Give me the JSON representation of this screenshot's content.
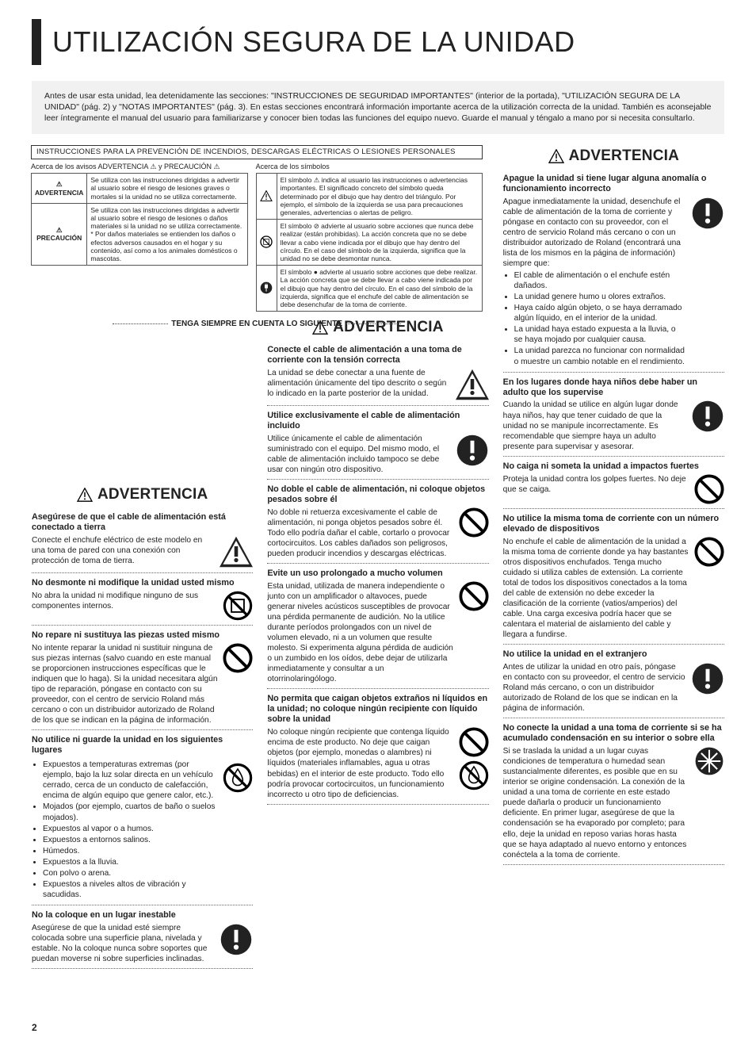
{
  "page_number": "2",
  "title": "UTILIZACIÓN SEGURA DE LA UNIDAD",
  "intro": "Antes de usar esta unidad, lea detenidamente las secciones: \"INSTRUCCIONES DE SEGURIDAD IMPORTANTES\" (interior de la portada), \"UTILIZACIÓN SEGURA DE LA UNIDAD\" (pág. 2) y \"NOTAS IMPORTANTES\" (pág. 3). En estas secciones encontrará información importante acerca de la utilización correcta de la unidad. También es aconsejable leer íntegramente el manual del usuario para familiarizarse y conocer bien todas las funciones del equipo nuevo. Guarde el manual y téngalo a mano por si necesita consultarlo.",
  "instr_bar": "INSTRUCCIONES PARA LA PREVENCIÓN DE INCENDIOS, DESCARGAS ELÉCTRICAS O LESIONES PERSONALES",
  "tbl_left_title": "Acerca de los avisos ADVERTENCIA ⚠ y PRECAUCIÓN ⚠",
  "tbl_left": {
    "r1_label": "⚠ ADVERTENCIA",
    "r1_text": "Se utiliza con las instrucciones dirigidas a advertir al usuario sobre el riesgo de lesiones graves o mortales si la unidad no se utiliza correctamente.",
    "r2_label": "⚠ PRECAUCIÓN",
    "r2_text": "Se utiliza con las instrucciones dirigidas a advertir al usuario sobre el riesgo de lesiones o daños materiales si la unidad no se utiliza correctamente.\n* Por daños materiales se entienden los daños o efectos adversos causados en el hogar y su contenido, así como a los animales domésticos o mascotas."
  },
  "tbl_right_title": "Acerca de los símbolos",
  "tbl_right": {
    "r1": "El símbolo ⚠ indica al usuario las instrucciones o advertencias importantes. El significado concreto del símbolo queda determinado por el dibujo que hay dentro del triángulo. Por ejemplo, el símbolo de la izquierda se usa para precauciones generales, advertencias o alertas de peligro.",
    "r2": "El símbolo ⊘ advierte al usuario sobre acciones que nunca debe realizar (están prohibidas). La acción concreta que no se debe llevar a cabo viene indicada por el dibujo que hay dentro del círculo. En el caso del símbolo de la izquierda, significa que la unidad no se debe desmontar nunca.",
    "r3": "El símbolo ● advierte al usuario sobre acciones que debe realizar. La acción concreta que se debe llevar a cabo viene indicada por el dibujo que hay dentro del círculo. En el caso del símbolo de la izquierda, significa que el enchufe del cable de alimentación se debe desenchufar de la toma de corriente."
  },
  "divider": "TENGA SIEMPRE EN CUENTA LO SIGUIENTE",
  "warn_label": "ADVERTENCIA",
  "col1": {
    "s1_t": "Asegúrese de que el cable de alimentación está conectado a tierra",
    "s1_b": "Conecte el enchufe eléctrico de este modelo en una toma de pared con una conexión con protección de toma de tierra.",
    "s2_t": "No desmonte ni modifique la unidad usted mismo",
    "s2_b": "No abra la unidad ni modifique ninguno de sus componentes internos.",
    "s3_t": "No repare ni sustituya las piezas usted mismo",
    "s3_b": "No intente reparar la unidad ni sustituir ninguna de sus piezas internas (salvo cuando en este manual se proporcionen instrucciones específicas que le indiquen que lo haga). Si la unidad necesitara algún tipo de reparación, póngase en contacto con su proveedor, con el centro de servicio Roland más cercano o con un distribuidor autorizado de Roland de los que se indican en la página de información.",
    "s4_t": "No utilice ni guarde la unidad en los siguientes lugares",
    "s4_items": [
      "Expuestos a temperaturas extremas (por ejemplo, bajo la luz solar directa en un vehículo cerrado, cerca de un conducto de calefacción, encima de algún equipo que genere calor, etc.).",
      "Mojados (por ejemplo, cuartos de baño o suelos mojados).",
      "Expuestos al vapor o a humos.",
      "Expuestos a entornos salinos.",
      "Húmedos.",
      "Expuestos a la lluvia.",
      "Con polvo o arena.",
      "Expuestos a niveles altos de vibración y sacudidas."
    ],
    "s5_t": "No la coloque en un lugar inestable",
    "s5_b": "Asegúrese de que la unidad esté siempre colocada sobre una superficie plana, nivelada y estable. No la coloque nunca sobre soportes que puedan moverse ni sobre superficies inclinadas."
  },
  "col2": {
    "s1_t": "Conecte el cable de alimentación a una toma de corriente con la tensión correcta",
    "s1_b": "La unidad se debe conectar a una fuente de alimentación únicamente del tipo descrito o según lo indicado en la parte posterior de la unidad.",
    "s2_t": "Utilice exclusivamente el cable de alimentación incluido",
    "s2_b": "Utilice únicamente el cable de alimentación suministrado con el equipo. Del mismo modo, el cable de alimentación incluido tampoco se debe usar con ningún otro dispositivo.",
    "s3_t": "No doble el cable de alimentación, ni coloque objetos pesados sobre él",
    "s3_b": "No doble ni retuerza excesivamente el cable de alimentación, ni ponga objetos pesados sobre él. Todo ello podría dañar el cable, cortarlo o provocar cortocircuitos. Los cables dañados son peligrosos, pueden producir incendios y descargas eléctricas.",
    "s4_t": "Evite un uso prolongado a mucho volumen",
    "s4_b": "Esta unidad, utilizada de manera independiente o junto con un amplificador o altavoces, puede generar niveles acústicos susceptibles de provocar una pérdida permanente de audición. No la utilice durante períodos prolongados con un nivel de volumen elevado, ni a un volumen que resulte molesto. Si experimenta alguna pérdida de audición o un zumbido en los oídos, debe dejar de utilizarla inmediatamente y consultar a un otorrinolaringólogo.",
    "s5_t": "No permita que caigan objetos extraños ni líquidos en la unidad; no coloque ningún recipiente con líquido sobre la unidad",
    "s5_b": "No coloque ningún recipiente que contenga líquido encima de este producto. No deje que caigan objetos (por ejemplo, monedas o alambres) ni líquidos (materiales inflamables, agua u otras bebidas) en el interior de este producto. Todo ello podría provocar cortocircuitos, un funcionamiento incorrecto u otro tipo de deficiencias."
  },
  "col3": {
    "s1_t": "Apague la unidad si tiene lugar alguna anomalía o funcionamiento incorrecto",
    "s1_b": "Apague inmediatamente la unidad, desenchufe el cable de alimentación de la toma de corriente y póngase en contacto con su proveedor, con el centro de servicio Roland más cercano o con un distribuidor autorizado de Roland (encontrará una lista de los mismos en la página de información) siempre que:",
    "s1_items": [
      "El cable de alimentación o el enchufe estén dañados.",
      "La unidad genere humo u olores extraños.",
      "Haya caído algún objeto, o se haya derramado algún líquido, en el interior de la unidad.",
      "La unidad haya estado expuesta a la lluvia, o se haya mojado por cualquier causa.",
      "La unidad parezca no funcionar con normalidad o muestre un cambio notable en el rendimiento."
    ],
    "s2_t": "En los lugares donde haya niños debe haber un adulto que los supervise",
    "s2_b": "Cuando la unidad se utilice en algún lugar donde haya niños, hay que tener cuidado de que la unidad no se manipule incorrectamente. Es recomendable que siempre haya un adulto presente para supervisar y asesorar.",
    "s3_t": "No caiga ni someta la unidad a impactos fuertes",
    "s3_b": "Proteja la unidad contra los golpes fuertes. No deje que se caiga.",
    "s4_t": "No utilice la misma toma de corriente con un número elevado de dispositivos",
    "s4_b": "No enchufe el cable de alimentación de la unidad a la misma toma de corriente donde ya hay bastantes otros dispositivos enchufados. Tenga mucho cuidado si utiliza cables de extensión. La corriente total de todos los dispositivos conectados a la toma del cable de extensión no debe exceder la clasificación de la corriente (vatios/amperios) del cable. Una carga excesiva podría hacer que se calentara el material de aislamiento del cable y llegara a fundirse.",
    "s5_t": "No utilice la unidad en el extranjero",
    "s5_b": "Antes de utilizar la unidad en otro país, póngase en contacto con su proveedor, el centro de servicio Roland más cercano, o con un distribuidor autorizado de Roland de los que se indican en la página de información.",
    "s6_t": "No conecte la unidad a una toma de corriente si se ha acumulado condensación en su interior o sobre ella",
    "s6_b": "Si se traslada la unidad a un lugar cuyas condiciones de temperatura o humedad sean sustancialmente diferentes, es posible que en su interior se origine condensación. La conexión de la unidad a una toma de corriente en este estado puede dañarla o producir un funcionamiento deficiente. En primer lugar, asegúrese de que la condensación se ha evaporado por completo; para ello, deje la unidad en reposo varias horas hasta que se haya adaptado al nuevo entorno y entonces conéctela a la toma de corriente."
  }
}
